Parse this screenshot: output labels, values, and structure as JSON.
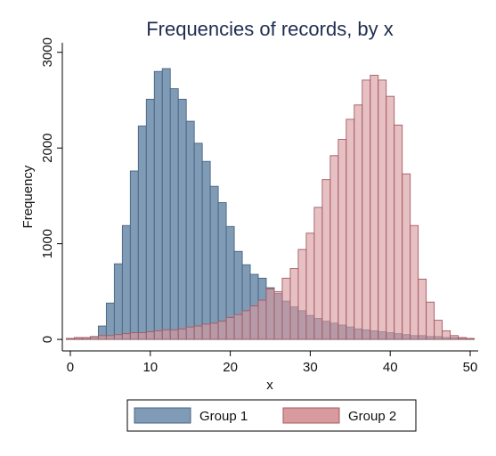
{
  "chart_data": {
    "type": "bar",
    "title": "Frequencies of records, by x",
    "xlabel": "x",
    "ylabel": "Frequency",
    "xlim": [
      -1,
      51
    ],
    "ylim": [
      -120,
      3100
    ],
    "x_ticks": [
      0,
      10,
      20,
      30,
      40,
      50
    ],
    "y_ticks": [
      0,
      1000,
      2000,
      3000
    ],
    "bin_width": 1,
    "grid": false,
    "legend_position": "bottom",
    "series": [
      {
        "name": "Group 1",
        "color": "#7f9bb5",
        "edge_color": "#4a6480",
        "bins": [
          {
            "x": 0,
            "y": 10
          },
          {
            "x": 1,
            "y": 10
          },
          {
            "x": 2,
            "y": 10
          },
          {
            "x": 3,
            "y": 30
          },
          {
            "x": 4,
            "y": 140
          },
          {
            "x": 5,
            "y": 380
          },
          {
            "x": 6,
            "y": 790
          },
          {
            "x": 7,
            "y": 1190
          },
          {
            "x": 8,
            "y": 1760
          },
          {
            "x": 9,
            "y": 2230
          },
          {
            "x": 10,
            "y": 2510
          },
          {
            "x": 11,
            "y": 2800
          },
          {
            "x": 12,
            "y": 2830
          },
          {
            "x": 13,
            "y": 2620
          },
          {
            "x": 14,
            "y": 2510
          },
          {
            "x": 15,
            "y": 2280
          },
          {
            "x": 16,
            "y": 2050
          },
          {
            "x": 17,
            "y": 1860
          },
          {
            "x": 18,
            "y": 1600
          },
          {
            "x": 19,
            "y": 1430
          },
          {
            "x": 20,
            "y": 1180
          },
          {
            "x": 21,
            "y": 920
          },
          {
            "x": 22,
            "y": 780
          },
          {
            "x": 23,
            "y": 680
          },
          {
            "x": 24,
            "y": 640
          },
          {
            "x": 25,
            "y": 540
          },
          {
            "x": 26,
            "y": 480
          },
          {
            "x": 27,
            "y": 400
          },
          {
            "x": 28,
            "y": 340
          },
          {
            "x": 29,
            "y": 300
          },
          {
            "x": 30,
            "y": 250
          },
          {
            "x": 31,
            "y": 220
          },
          {
            "x": 32,
            "y": 190
          },
          {
            "x": 33,
            "y": 170
          },
          {
            "x": 34,
            "y": 150
          },
          {
            "x": 35,
            "y": 130
          },
          {
            "x": 36,
            "y": 110
          },
          {
            "x": 37,
            "y": 100
          },
          {
            "x": 38,
            "y": 90
          },
          {
            "x": 39,
            "y": 80
          },
          {
            "x": 40,
            "y": 70
          },
          {
            "x": 41,
            "y": 60
          },
          {
            "x": 42,
            "y": 50
          },
          {
            "x": 43,
            "y": 40
          },
          {
            "x": 44,
            "y": 40
          },
          {
            "x": 45,
            "y": 30
          },
          {
            "x": 46,
            "y": 30
          },
          {
            "x": 47,
            "y": 20
          },
          {
            "x": 48,
            "y": 20
          },
          {
            "x": 49,
            "y": 10
          },
          {
            "x": 50,
            "y": 10
          }
        ]
      },
      {
        "name": "Group 2",
        "color": "#d99a9e",
        "edge_color": "#a35a62",
        "bins": [
          {
            "x": 0,
            "y": 10
          },
          {
            "x": 1,
            "y": 20
          },
          {
            "x": 2,
            "y": 20
          },
          {
            "x": 3,
            "y": 30
          },
          {
            "x": 4,
            "y": 40
          },
          {
            "x": 5,
            "y": 40
          },
          {
            "x": 6,
            "y": 50
          },
          {
            "x": 7,
            "y": 60
          },
          {
            "x": 8,
            "y": 70
          },
          {
            "x": 9,
            "y": 70
          },
          {
            "x": 10,
            "y": 80
          },
          {
            "x": 11,
            "y": 90
          },
          {
            "x": 12,
            "y": 100
          },
          {
            "x": 13,
            "y": 100
          },
          {
            "x": 14,
            "y": 110
          },
          {
            "x": 15,
            "y": 130
          },
          {
            "x": 16,
            "y": 140
          },
          {
            "x": 17,
            "y": 160
          },
          {
            "x": 18,
            "y": 170
          },
          {
            "x": 19,
            "y": 190
          },
          {
            "x": 20,
            "y": 230
          },
          {
            "x": 21,
            "y": 260
          },
          {
            "x": 22,
            "y": 300
          },
          {
            "x": 23,
            "y": 350
          },
          {
            "x": 24,
            "y": 410
          },
          {
            "x": 25,
            "y": 530
          },
          {
            "x": 26,
            "y": 500
          },
          {
            "x": 27,
            "y": 640
          },
          {
            "x": 28,
            "y": 740
          },
          {
            "x": 29,
            "y": 940
          },
          {
            "x": 30,
            "y": 1110
          },
          {
            "x": 31,
            "y": 1380
          },
          {
            "x": 32,
            "y": 1670
          },
          {
            "x": 33,
            "y": 1920
          },
          {
            "x": 34,
            "y": 2090
          },
          {
            "x": 35,
            "y": 2300
          },
          {
            "x": 36,
            "y": 2450
          },
          {
            "x": 37,
            "y": 2710
          },
          {
            "x": 38,
            "y": 2760
          },
          {
            "x": 39,
            "y": 2710
          },
          {
            "x": 40,
            "y": 2540
          },
          {
            "x": 41,
            "y": 2240
          },
          {
            "x": 42,
            "y": 1730
          },
          {
            "x": 43,
            "y": 1190
          },
          {
            "x": 44,
            "y": 630
          },
          {
            "x": 45,
            "y": 390
          },
          {
            "x": 46,
            "y": 200
          },
          {
            "x": 47,
            "y": 90
          },
          {
            "x": 48,
            "y": 40
          },
          {
            "x": 49,
            "y": 20
          },
          {
            "x": 50,
            "y": 10
          }
        ]
      }
    ]
  }
}
